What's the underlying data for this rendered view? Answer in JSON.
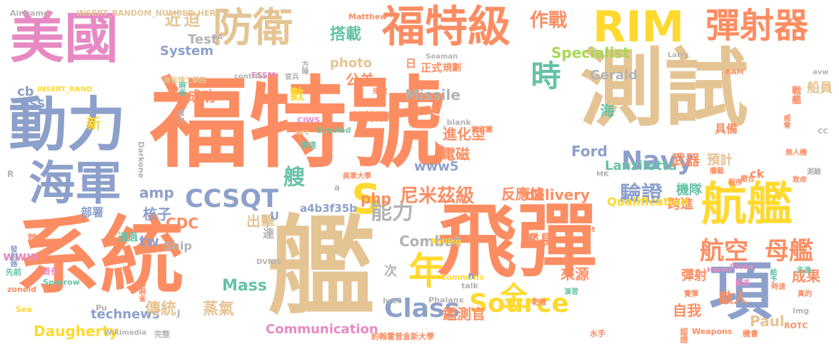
{
  "colors": {
    "orange": "#fc8d62",
    "blue": "#8da0cb",
    "tan": "#e5c494",
    "yellow": "#ffd92f",
    "green": "#a6d854",
    "pink": "#e78ac3",
    "teal": "#66c2a5",
    "gray": "#b3b3b3"
  },
  "words": [
    {
      "text": "福特號",
      "color": "orange"
    },
    {
      "text": "測試",
      "color": "tan"
    },
    {
      "text": "系統",
      "color": "orange"
    },
    {
      "text": "艦",
      "color": "tan"
    },
    {
      "text": "飛彈",
      "color": "orange"
    },
    {
      "text": "美國",
      "color": "pink"
    },
    {
      "text": "動力",
      "color": "blue"
    },
    {
      "text": "海軍",
      "color": "blue"
    },
    {
      "text": "防衛",
      "color": "tan"
    },
    {
      "text": "福特級",
      "color": "orange"
    },
    {
      "text": "RIM",
      "color": "yellow"
    },
    {
      "text": "彈射器",
      "color": "orange"
    },
    {
      "text": "航艦",
      "color": "yellow"
    },
    {
      "text": "項",
      "color": "blue"
    },
    {
      "text": "年",
      "color": "yellow"
    },
    {
      "text": "S",
      "color": "yellow"
    },
    {
      "text": "CCSQT",
      "color": "blue"
    },
    {
      "text": "Navy",
      "color": "blue"
    },
    {
      "text": "驗證",
      "color": "blue"
    },
    {
      "text": "航空",
      "color": "orange"
    },
    {
      "text": "母艦",
      "color": "orange"
    },
    {
      "text": "Source",
      "color": "yellow"
    },
    {
      "text": "Class",
      "color": "blue"
    },
    {
      "text": "能力",
      "color": "gray"
    },
    {
      "text": "作戰",
      "color": "orange"
    },
    {
      "text": "時",
      "color": "teal"
    },
    {
      "text": "搭載",
      "color": "teal"
    },
    {
      "text": "近",
      "color": "tan"
    },
    {
      "text": "迫",
      "color": "tan"
    },
    {
      "text": "艘",
      "color": "teal"
    },
    {
      "text": "全",
      "color": "yellow"
    },
    {
      "text": "尼米茲級",
      "color": "orange"
    },
    {
      "text": "Lanzilotta",
      "color": "teal"
    },
    {
      "text": "進化型",
      "color": "orange"
    },
    {
      "text": "電磁",
      "color": "orange"
    },
    {
      "text": "Specialist",
      "color": "green"
    },
    {
      "text": "photo",
      "color": "tan"
    },
    {
      "text": "Missile",
      "color": "gray"
    },
    {
      "text": "成功",
      "color": "orange"
    },
    {
      "text": "數",
      "color": "yellow"
    },
    {
      "text": "公羊",
      "color": "orange"
    },
    {
      "text": "System",
      "color": "blue"
    },
    {
      "text": "Test",
      "color": "gray"
    },
    {
      "text": "Communication",
      "color": "pink"
    },
    {
      "text": "Daugherty",
      "color": "yellow"
    },
    {
      "text": "technews",
      "color": "blue"
    },
    {
      "text": "傳統",
      "color": "tan"
    },
    {
      "text": "蒸氣",
      "color": "tan"
    },
    {
      "text": "鑑測官",
      "color": "orange"
    },
    {
      "text": "自我",
      "color": "orange"
    },
    {
      "text": "敵人",
      "color": "orange"
    },
    {
      "text": "Paul",
      "color": "tan"
    },
    {
      "text": "成果",
      "color": "orange"
    },
    {
      "text": "彈射",
      "color": "orange"
    },
    {
      "text": "來源",
      "color": "orange"
    },
    {
      "text": "艦長",
      "color": "orange"
    },
    {
      "text": "反應爐",
      "color": "orange"
    },
    {
      "text": "delivery",
      "color": "orange"
    },
    {
      "text": "Mass",
      "color": "teal"
    },
    {
      "text": "Ford",
      "color": "blue"
    },
    {
      "text": "www5",
      "color": "blue"
    },
    {
      "text": "php",
      "color": "orange"
    },
    {
      "text": "a4b3f35b",
      "color": "blue"
    },
    {
      "text": "amp",
      "color": "blue"
    },
    {
      "text": "核子",
      "color": "blue"
    },
    {
      "text": "出擊",
      "color": "tan"
    },
    {
      "text": "CDC",
      "color": "orange"
    },
    {
      "text": "tw",
      "color": "blue"
    },
    {
      "text": "Combat",
      "color": "gray"
    },
    {
      "text": "武器",
      "color": "orange"
    },
    {
      "text": "預計",
      "color": "tan"
    },
    {
      "text": "機隊",
      "color": "teal"
    },
    {
      "text": "跨進",
      "color": "orange"
    },
    {
      "text": "Qualification",
      "color": "yellow"
    },
    {
      "text": "海",
      "color": "teal"
    },
    {
      "text": "新",
      "color": "yellow"
    },
    {
      "text": "Gerald",
      "color": "gray"
    },
    {
      "text": "正式",
      "color": "orange"
    },
    {
      "text": "規劃",
      "color": "orange"
    },
    {
      "text": "日",
      "color": "orange"
    },
    {
      "text": "福特級核",
      "color": "orange"
    },
    {
      "text": "具備",
      "color": "orange"
    },
    {
      "text": "船員",
      "color": "tan"
    },
    {
      "text": "戰艦",
      "color": "orange"
    },
    {
      "text": "USS",
      "color": "blue"
    },
    {
      "text": "cb",
      "color": "blue"
    },
    {
      "text": "Ship",
      "color": "gray"
    },
    {
      "text": "www",
      "color": "pink"
    },
    {
      "text": "通過",
      "color": "teal"
    },
    {
      "text": "部署",
      "color": "blue"
    },
    {
      "text": "達",
      "color": "gray"
    },
    {
      "text": "次",
      "color": "gray"
    },
    {
      "text": "Airframe",
      "color": "gray"
    },
    {
      "text": "INSERT_RANDOM_NUMBER_HERE",
      "color": "tan"
    },
    {
      "text": "Matthew",
      "color": "orange"
    },
    {
      "text": "Seaman",
      "color": "gray"
    },
    {
      "text": "麻省理工學院",
      "color": "tan"
    },
    {
      "text": "ESSM",
      "color": "pink"
    },
    {
      "text": "contribs",
      "color": "gray"
    },
    {
      "text": "官兵",
      "color": "gray"
    },
    {
      "text": "方陣",
      "color": "gray"
    },
    {
      "text": "CIWS",
      "color": "pink"
    },
    {
      "text": "Evovled",
      "color": "teal"
    },
    {
      "text": "src",
      "color": "tan"
    },
    {
      "text": "_blank",
      "color": "gray"
    },
    {
      "text": "軍官團",
      "color": "orange"
    },
    {
      "text": "高速",
      "color": "teal"
    },
    {
      "text": "美軍大學",
      "color": "orange"
    },
    {
      "text": "Sparrow",
      "color": "teal"
    },
    {
      "text": "Darkone",
      "color": "gray"
    },
    {
      "text": "Close",
      "color": "pink"
    },
    {
      "text": "Rolling",
      "color": "yellow"
    },
    {
      "text": "target",
      "color": "orange"
    },
    {
      "text": "Phalanx",
      "color": "gray"
    },
    {
      "text": "Commons",
      "color": "yellow"
    },
    {
      "text": "href",
      "color": "gray"
    },
    {
      "text": "約翰霍普金斯大學",
      "color": "orange"
    },
    {
      "text": "Wikimedia",
      "color": "gray"
    },
    {
      "text": "完整",
      "color": "gray"
    },
    {
      "text": "水手",
      "color": "orange"
    },
    {
      "text": "Weapons",
      "color": "orange"
    },
    {
      "text": "認證",
      "color": "orange"
    },
    {
      "text": "機會",
      "color": "orange"
    },
    {
      "text": "ROTC",
      "color": "orange"
    },
    {
      "text": "img",
      "color": "gray"
    },
    {
      "text": "zoneid",
      "color": "orange"
    },
    {
      "text": "Sea",
      "color": "yellow"
    },
    {
      "text": "Pu",
      "color": "gray"
    },
    {
      "text": "MK",
      "color": "gray"
    },
    {
      "text": "Haran",
      "color": "pink"
    },
    {
      "text": "RAM",
      "color": "orange"
    },
    {
      "text": "avw",
      "color": "gray"
    },
    {
      "text": "Larry",
      "color": "gray"
    },
    {
      "text": "ck",
      "color": "orange"
    },
    {
      "text": "DVIDS",
      "color": "gray"
    },
    {
      "text": "talk",
      "color": "gray"
    },
    {
      "text": "SA",
      "color": "gray"
    },
    {
      "text": "INSERT_RAND",
      "color": "yellow"
    },
    {
      "text": "先前",
      "color": "teal"
    },
    {
      "text": "首任",
      "color": "pink"
    },
    {
      "text": "發射器",
      "color": "blue"
    },
    {
      "text": "首",
      "color": "orange"
    },
    {
      "text": "威力",
      "color": "gray"
    },
    {
      "text": "麻雀",
      "color": "teal"
    },
    {
      "text": "接戰",
      "color": "orange"
    },
    {
      "text": "海麻雀",
      "color": "orange"
    },
    {
      "text": "靶機",
      "color": "orange"
    },
    {
      "text": "演習",
      "color": "teal"
    },
    {
      "text": "實彈",
      "color": "orange"
    },
    {
      "text": "給予",
      "color": "teal"
    },
    {
      "text": "時速",
      "color": "orange"
    },
    {
      "text": "真的",
      "color": "orange"
    },
    {
      "text": "無人機",
      "color": "orange"
    },
    {
      "text": "威脅",
      "color": "orange"
    },
    {
      "text": "攔截",
      "color": "orange"
    },
    {
      "text": "程序",
      "color": "orange"
    },
    {
      "text": "磨合",
      "color": "orange"
    },
    {
      "text": "測驗",
      "color": "gray"
    },
    {
      "text": "致命",
      "color": "orange"
    },
    {
      "text": "驅逐",
      "color": "pink"
    },
    {
      "text": "先進",
      "color": "teal"
    },
    {
      "text": "R",
      "color": "gray"
    },
    {
      "text": "U",
      "color": "blue"
    },
    {
      "text": "a",
      "color": "gray"
    },
    {
      "text": "n",
      "color": "blue"
    },
    {
      "text": "J",
      "color": "gray"
    },
    {
      "text": "CC",
      "color": "gray"
    }
  ]
}
